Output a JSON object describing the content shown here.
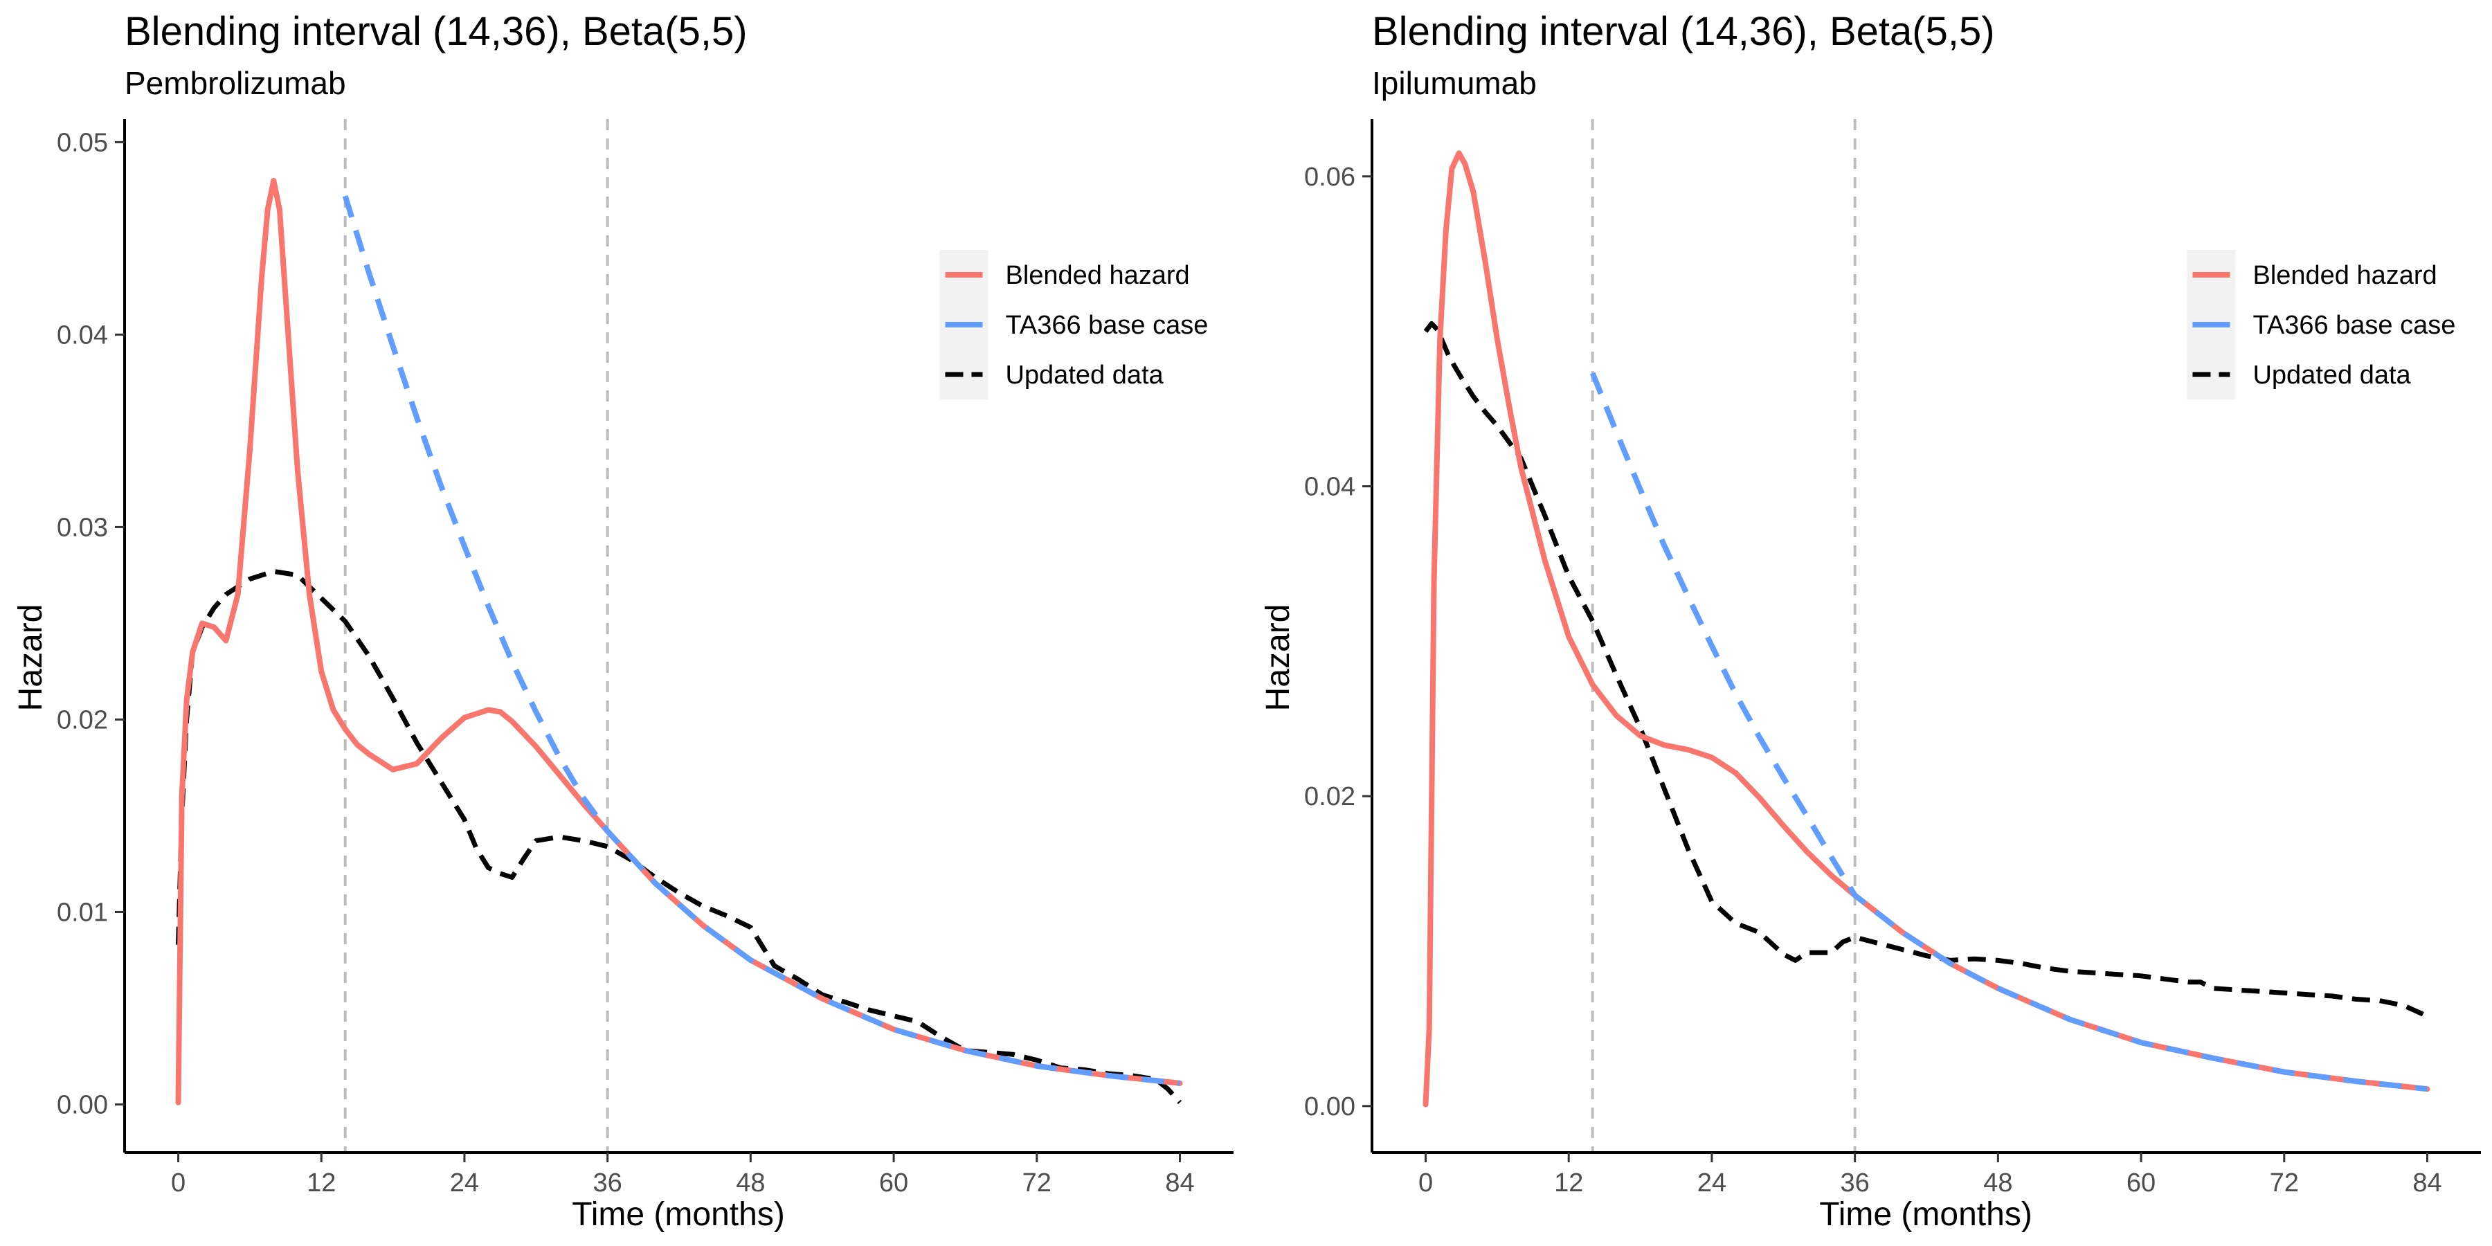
{
  "chart_data": [
    {
      "type": "line",
      "title": "Blending interval (14,36), Beta(5,5)",
      "subtitle": "Pembrolizumab",
      "xlabel": "Time (months)",
      "ylabel": "Hazard",
      "xlim": [
        -4.5,
        88.5
      ],
      "ylim": [
        -0.0025,
        0.0512
      ],
      "x_ticks": [
        0,
        12,
        24,
        36,
        48,
        60,
        72,
        84
      ],
      "y_ticks": [
        0.0,
        0.01,
        0.02,
        0.03,
        0.04,
        0.05
      ],
      "y_tick_labels": [
        "0.00",
        "0.01",
        "0.02",
        "0.03",
        "0.04",
        "0.05"
      ],
      "vlines": [
        14,
        36
      ],
      "legend_position": "top-right",
      "grid": false,
      "series": [
        {
          "name": "Blended hazard",
          "color": "#F8766D",
          "style": "solid",
          "x": [
            0,
            0.3,
            0.7,
            1.2,
            2,
            3,
            4,
            5,
            6,
            7,
            7.5,
            8,
            8.5,
            9,
            10,
            11,
            12,
            13,
            14,
            15,
            16,
            18,
            20,
            22,
            24,
            26,
            27,
            28,
            30,
            32,
            34,
            36,
            40,
            44,
            48,
            54,
            60,
            66,
            72,
            78,
            84
          ],
          "y": [
            0.0001,
            0.016,
            0.021,
            0.0235,
            0.025,
            0.0248,
            0.0241,
            0.0265,
            0.034,
            0.043,
            0.0465,
            0.048,
            0.0465,
            0.042,
            0.033,
            0.0265,
            0.0225,
            0.0205,
            0.0195,
            0.0187,
            0.0182,
            0.0174,
            0.0177,
            0.019,
            0.0201,
            0.0205,
            0.0204,
            0.0199,
            0.0186,
            0.0171,
            0.0156,
            0.0142,
            0.0115,
            0.0093,
            0.0075,
            0.0055,
            0.0039,
            0.0028,
            0.002,
            0.0015,
            0.0011
          ]
        },
        {
          "name": "TA366 base case",
          "color": "#619CFF",
          "style": "dashed",
          "x": [
            14,
            16,
            18,
            20,
            22,
            24,
            26,
            28,
            30,
            32,
            34,
            36,
            40,
            44,
            48,
            54,
            60,
            66,
            72,
            78,
            84
          ],
          "y": [
            0.0472,
            0.0432,
            0.0394,
            0.0357,
            0.0322,
            0.029,
            0.0259,
            0.023,
            0.0204,
            0.018,
            0.0159,
            0.0142,
            0.0115,
            0.0093,
            0.0075,
            0.0055,
            0.0039,
            0.0028,
            0.002,
            0.0015,
            0.0011
          ]
        },
        {
          "name": "Updated data",
          "color": "#000000",
          "style": "dashed",
          "x": [
            0,
            0.3,
            0.7,
            1.2,
            2,
            3,
            4,
            6,
            8,
            10,
            12,
            14,
            16,
            18,
            20,
            22,
            24,
            25,
            26,
            27,
            28,
            29,
            30,
            32,
            34,
            36,
            38,
            40,
            42,
            44,
            46,
            48,
            49,
            50,
            52,
            54,
            56,
            58,
            60,
            62,
            64,
            66,
            68,
            70,
            72,
            74,
            76,
            78,
            80,
            82,
            83,
            84
          ],
          "y": [
            0.0083,
            0.015,
            0.02,
            0.0235,
            0.0248,
            0.0258,
            0.0265,
            0.0273,
            0.0277,
            0.0275,
            0.0263,
            0.0251,
            0.0233,
            0.0211,
            0.0188,
            0.0168,
            0.0148,
            0.0133,
            0.0123,
            0.012,
            0.0118,
            0.0128,
            0.0137,
            0.0139,
            0.0137,
            0.0134,
            0.0127,
            0.0118,
            0.011,
            0.0103,
            0.0098,
            0.0092,
            0.0082,
            0.0072,
            0.0065,
            0.0057,
            0.0053,
            0.0049,
            0.0046,
            0.0043,
            0.0035,
            0.0028,
            0.0027,
            0.0026,
            0.0023,
            0.0019,
            0.0018,
            0.0016,
            0.0015,
            0.0013,
            0.0008,
            0.0001
          ]
        }
      ]
    },
    {
      "type": "line",
      "title": "Blending interval (14,36), Beta(5,5)",
      "subtitle": "Ipilumumab",
      "xlabel": "Time (months)",
      "ylabel": "Hazard",
      "xlim": [
        -4.5,
        88.5
      ],
      "ylim": [
        -0.003,
        0.0637
      ],
      "x_ticks": [
        0,
        12,
        24,
        36,
        48,
        60,
        72,
        84
      ],
      "y_ticks": [
        0.0,
        0.02,
        0.04,
        0.06
      ],
      "y_tick_labels": [
        "0.00",
        "0.02",
        "0.04",
        "0.06"
      ],
      "vlines": [
        14,
        36
      ],
      "legend_position": "top-right",
      "grid": false,
      "series": [
        {
          "name": "Blended hazard",
          "color": "#F8766D",
          "style": "solid",
          "x": [
            0,
            0.3,
            0.7,
            1.2,
            1.7,
            2.2,
            2.8,
            3.3,
            4,
            5,
            6,
            7,
            8,
            10,
            12,
            14,
            16,
            18,
            20,
            22,
            24,
            26,
            28,
            30,
            32,
            34,
            36,
            40,
            44,
            48,
            54,
            60,
            66,
            72,
            78,
            84
          ],
          "y": [
            0.0001,
            0.005,
            0.034,
            0.0495,
            0.0565,
            0.0605,
            0.0615,
            0.0608,
            0.059,
            0.0545,
            0.0495,
            0.0452,
            0.0412,
            0.0352,
            0.0303,
            0.0272,
            0.0252,
            0.0239,
            0.0233,
            0.023,
            0.0225,
            0.0215,
            0.0199,
            0.0181,
            0.0164,
            0.0149,
            0.0136,
            0.0112,
            0.0092,
            0.0076,
            0.0056,
            0.0041,
            0.0031,
            0.0022,
            0.0016,
            0.0011
          ]
        },
        {
          "name": "TA366 base case",
          "color": "#619CFF",
          "style": "dashed",
          "x": [
            14,
            16,
            18,
            20,
            22,
            24,
            26,
            28,
            30,
            32,
            34,
            36,
            40,
            44,
            48,
            54,
            60,
            66,
            72,
            78,
            84
          ],
          "y": [
            0.0473,
            0.0435,
            0.0398,
            0.0362,
            0.0329,
            0.0297,
            0.0266,
            0.0238,
            0.0212,
            0.0187,
            0.0161,
            0.0136,
            0.0112,
            0.0092,
            0.0076,
            0.0056,
            0.0041,
            0.0031,
            0.0022,
            0.0016,
            0.0011
          ]
        },
        {
          "name": "Updated data",
          "color": "#000000",
          "style": "dashed",
          "x": [
            0,
            0.5,
            1,
            2,
            3,
            4,
            5,
            6,
            8,
            10,
            12,
            14,
            16,
            18,
            20,
            22,
            24,
            26,
            28,
            29,
            30,
            31,
            32,
            34,
            35,
            36,
            38,
            40,
            42,
            44,
            46,
            48,
            50,
            52,
            54,
            56,
            58,
            60,
            62,
            64,
            65,
            66,
            68,
            70,
            72,
            74,
            76,
            78,
            80,
            82,
            84
          ],
          "y": [
            0.05,
            0.0505,
            0.0501,
            0.0483,
            0.047,
            0.0458,
            0.0448,
            0.0439,
            0.0418,
            0.0381,
            0.0342,
            0.0313,
            0.0278,
            0.0244,
            0.0205,
            0.0166,
            0.0132,
            0.0118,
            0.0112,
            0.0105,
            0.0098,
            0.0094,
            0.0099,
            0.0099,
            0.0106,
            0.0109,
            0.0105,
            0.0101,
            0.0097,
            0.0094,
            0.0095,
            0.0094,
            0.0092,
            0.0089,
            0.0087,
            0.0086,
            0.0085,
            0.0084,
            0.0082,
            0.008,
            0.008,
            0.0076,
            0.0075,
            0.0074,
            0.0073,
            0.0072,
            0.0071,
            0.0069,
            0.0068,
            0.0065,
            0.0058
          ]
        }
      ]
    }
  ]
}
